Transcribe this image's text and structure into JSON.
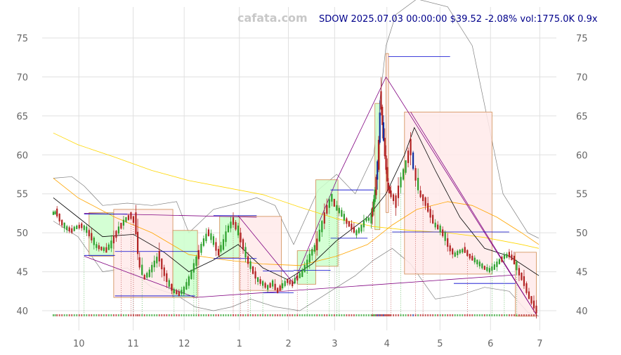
{
  "watermark": "cafata.com",
  "header": {
    "ticker": "SDOW",
    "date": "2025.07.03 00:00:00",
    "price": "$39.52",
    "change": "-2.08%",
    "volume": "vol:1775.0K",
    "ratio": "0.9x"
  },
  "colors": {
    "up": "#2ca02c",
    "down": "#b22222",
    "big_up": "#1030a0",
    "zone_up_fill": "#ccffcc",
    "zone_down_fill": "#ffeaea",
    "zone_border": "#d08a50",
    "ma_fast": "#000000",
    "ma_mid": "#ffa500",
    "ma_slow": "#ffd700",
    "band": "#808080",
    "trend": "#800080",
    "level": "#0000cd"
  },
  "chart_data": {
    "type": "candlestick",
    "title": "SDOW 2025.07.03 00:00:00 $39.52 -2.08% vol:1775.0K 0.9x",
    "x_ticks": [
      "10",
      "11",
      "12",
      "1",
      "2",
      "3",
      "4",
      "5",
      "6",
      "7"
    ],
    "x_tick_pos": [
      0.7,
      44.8,
      86.2,
      131.0,
      170.8,
      208.3,
      250.7,
      293.8,
      334.8,
      374.8
    ],
    "x_range": [
      -20,
      380
    ],
    "y_ticks": [
      40,
      45,
      50,
      55,
      60,
      65,
      70,
      75
    ],
    "ylim": [
      38.2,
      79
    ],
    "grid": true,
    "close_path": [
      [
        -20,
        52.5
      ],
      [
        -17,
        52.6
      ],
      [
        -13,
        51.3
      ],
      [
        -9,
        50.6
      ],
      [
        -5,
        50.3
      ],
      [
        -1,
        50.7
      ],
      [
        3,
        50.9
      ],
      [
        7,
        50.4
      ],
      [
        11,
        49.5
      ],
      [
        15,
        48.3
      ],
      [
        19,
        48.0
      ],
      [
        23,
        47.8
      ],
      [
        27,
        48.5
      ],
      [
        31,
        49.8
      ],
      [
        35,
        50.9
      ],
      [
        39,
        51.7
      ],
      [
        43,
        52.2
      ],
      [
        47,
        51.2
      ],
      [
        50,
        46.2
      ],
      [
        54,
        44.3
      ],
      [
        58,
        44.8
      ],
      [
        62,
        46.0
      ],
      [
        66,
        47.0
      ],
      [
        70,
        45.0
      ],
      [
        74,
        43.5
      ],
      [
        78,
        42.5
      ],
      [
        82,
        42.2
      ],
      [
        86,
        42.6
      ],
      [
        90,
        43.8
      ],
      [
        94,
        45.5
      ],
      [
        98,
        47.2
      ],
      [
        102,
        48.8
      ],
      [
        106,
        50.0
      ],
      [
        110,
        49.0
      ],
      [
        114,
        47.5
      ],
      [
        118,
        48.5
      ],
      [
        122,
        50.5
      ],
      [
        126,
        51.5
      ],
      [
        130,
        50.3
      ],
      [
        134,
        48.5
      ],
      [
        138,
        46.5
      ],
      [
        142,
        45.2
      ],
      [
        146,
        44.0
      ],
      [
        150,
        43.5
      ],
      [
        154,
        43.0
      ],
      [
        158,
        43.5
      ],
      [
        162,
        42.6
      ],
      [
        166,
        43.2
      ],
      [
        170,
        43.8
      ],
      [
        174,
        43.5
      ],
      [
        178,
        44.2
      ],
      [
        182,
        44.8
      ],
      [
        186,
        46.0
      ],
      [
        190,
        47.5
      ],
      [
        194,
        48.5
      ],
      [
        198,
        50.8
      ],
      [
        202,
        53.0
      ],
      [
        206,
        54.5
      ],
      [
        210,
        53.2
      ],
      [
        214,
        52.5
      ],
      [
        218,
        51.5
      ],
      [
        222,
        50.8
      ],
      [
        226,
        50.0
      ],
      [
        230,
        50.6
      ],
      [
        234,
        51.7
      ],
      [
        238,
        51.8
      ],
      [
        240,
        53.5
      ],
      [
        242,
        56.0
      ],
      [
        244,
        60.0
      ],
      [
        246,
        67.0
      ],
      [
        248,
        63.0
      ],
      [
        250,
        59.0
      ],
      [
        252,
        56.0
      ],
      [
        254,
        55.0
      ],
      [
        258,
        54.0
      ],
      [
        262,
        56.5
      ],
      [
        266,
        58.5
      ],
      [
        270,
        61.0
      ],
      [
        274,
        57.5
      ],
      [
        278,
        55.0
      ],
      [
        282,
        54.0
      ],
      [
        286,
        52.5
      ],
      [
        290,
        51.0
      ],
      [
        294,
        50.5
      ],
      [
        298,
        49.5
      ],
      [
        302,
        48.0
      ],
      [
        306,
        47.2
      ],
      [
        310,
        47.6
      ],
      [
        314,
        47.8
      ],
      [
        318,
        47.0
      ],
      [
        322,
        46.5
      ],
      [
        326,
        46.0
      ],
      [
        330,
        45.5
      ],
      [
        334,
        45.2
      ],
      [
        338,
        45.6
      ],
      [
        342,
        46.3
      ],
      [
        346,
        46.9
      ],
      [
        350,
        47.2
      ],
      [
        354,
        46.5
      ],
      [
        358,
        45.0
      ],
      [
        362,
        43.8
      ],
      [
        366,
        42.0
      ],
      [
        370,
        40.8
      ],
      [
        374,
        39.5
      ]
    ],
    "zones": [
      {
        "x0": 9,
        "x1": 29,
        "y0": 47.0,
        "y1": 52.6,
        "kind": "up"
      },
      {
        "x0": 29,
        "x1": 77,
        "y0": 41.7,
        "y1": 53.0,
        "kind": "down"
      },
      {
        "x0": 77,
        "x1": 97,
        "y0": 41.7,
        "y1": 50.3,
        "kind": "up"
      },
      {
        "x0": 115,
        "x1": 131,
        "y0": 46.8,
        "y1": 52.1,
        "kind": "up"
      },
      {
        "x0": 131,
        "x1": 165,
        "y0": 42.6,
        "y1": 52.1,
        "kind": "down"
      },
      {
        "x0": 178,
        "x1": 193,
        "y0": 43.4,
        "y1": 47.7,
        "kind": "up"
      },
      {
        "x0": 193,
        "x1": 211,
        "y0": 45.7,
        "y1": 56.8,
        "kind": "up"
      },
      {
        "x0": 241,
        "x1": 245,
        "y0": 50.4,
        "y1": 66.6,
        "kind": "up"
      },
      {
        "x0": 250,
        "x1": 252,
        "y0": 52.6,
        "y1": 73.0,
        "kind": "down"
      },
      {
        "x0": 265,
        "x1": 336,
        "y0": 44.7,
        "y1": 65.5,
        "kind": "down"
      },
      {
        "x0": 355,
        "x1": 372,
        "y0": 39.3,
        "y1": 47.5,
        "kind": "down"
      }
    ],
    "level_lines": [
      {
        "x0": 5,
        "x1": 40,
        "y": 52.4
      },
      {
        "x0": 5,
        "x1": 30,
        "y": 47.1
      },
      {
        "x0": 30,
        "x1": 98,
        "y": 47.6
      },
      {
        "x0": 30,
        "x1": 95,
        "y": 41.9
      },
      {
        "x0": 110,
        "x1": 145,
        "y": 52.2
      },
      {
        "x0": 110,
        "x1": 145,
        "y": 46.7
      },
      {
        "x0": 150,
        "x1": 175,
        "y": 45.1
      },
      {
        "x0": 150,
        "x1": 175,
        "y": 42.3
      },
      {
        "x0": 175,
        "x1": 205,
        "y": 45.2
      },
      {
        "x0": 205,
        "x1": 240,
        "y": 55.5
      },
      {
        "x0": 205,
        "x1": 235,
        "y": 49.3
      },
      {
        "x0": 252,
        "x1": 302,
        "y": 72.6
      },
      {
        "x0": 255,
        "x1": 350,
        "y": 50.1
      },
      {
        "x0": 305,
        "x1": 355,
        "y": 43.5
      }
    ],
    "trend_lines": [
      [
        [
          5,
          47.0
        ],
        [
          95,
          41.7
        ]
      ],
      [
        [
          5,
          52.5
        ],
        [
          145,
          52.0
        ]
      ],
      [
        [
          95,
          41.7
        ],
        [
          355,
          44.6
        ]
      ],
      [
        [
          130,
          52.2
        ],
        [
          175,
          43.5
        ]
      ],
      [
        [
          175,
          43.5
        ],
        [
          210,
          56.8
        ]
      ],
      [
        [
          210,
          56.8
        ],
        [
          250,
          70.0
        ]
      ],
      [
        [
          250,
          70.0
        ],
        [
          372,
          39.5
        ]
      ],
      [
        [
          270,
          65.5
        ],
        [
          372,
          39.5
        ]
      ]
    ],
    "ma_fast": [
      [
        -20,
        54.5
      ],
      [
        0,
        52.0
      ],
      [
        20,
        49.5
      ],
      [
        45,
        49.8
      ],
      [
        70,
        47.5
      ],
      [
        90,
        45.0
      ],
      [
        110,
        46.5
      ],
      [
        130,
        48.5
      ],
      [
        150,
        45.5
      ],
      [
        170,
        44.0
      ],
      [
        190,
        46.0
      ],
      [
        210,
        49.0
      ],
      [
        235,
        52.0
      ],
      [
        250,
        55.0
      ],
      [
        265,
        60.0
      ],
      [
        273,
        63.5
      ],
      [
        290,
        58.0
      ],
      [
        310,
        52.0
      ],
      [
        330,
        48.0
      ],
      [
        350,
        47.0
      ],
      [
        374,
        44.5
      ]
    ],
    "ma_mid": [
      [
        -20,
        57.0
      ],
      [
        0,
        54.5
      ],
      [
        30,
        52.0
      ],
      [
        60,
        50.0
      ],
      [
        90,
        47.2
      ],
      [
        120,
        46.5
      ],
      [
        150,
        46.0
      ],
      [
        180,
        45.8
      ],
      [
        210,
        47.0
      ],
      [
        235,
        48.5
      ],
      [
        255,
        51.0
      ],
      [
        275,
        53.0
      ],
      [
        300,
        54.0
      ],
      [
        320,
        53.5
      ],
      [
        340,
        52.0
      ],
      [
        360,
        50.0
      ],
      [
        374,
        48.5
      ]
    ],
    "ma_slow": [
      [
        -20,
        62.8
      ],
      [
        0,
        61.3
      ],
      [
        30,
        59.7
      ],
      [
        60,
        58.0
      ],
      [
        90,
        56.7
      ],
      [
        120,
        55.8
      ],
      [
        150,
        54.9
      ],
      [
        180,
        53.3
      ],
      [
        210,
        51.8
      ],
      [
        240,
        50.8
      ],
      [
        270,
        50.3
      ],
      [
        300,
        50.0
      ],
      [
        330,
        49.4
      ],
      [
        360,
        48.5
      ],
      [
        374,
        48.0
      ]
    ],
    "band_upper": [
      [
        -20,
        57.0
      ],
      [
        -5,
        57.2
      ],
      [
        5,
        56.0
      ],
      [
        20,
        53.5
      ],
      [
        40,
        53.8
      ],
      [
        60,
        53.5
      ],
      [
        80,
        54.0
      ],
      [
        90,
        50.0
      ],
      [
        110,
        53.0
      ],
      [
        130,
        53.8
      ],
      [
        145,
        54.5
      ],
      [
        160,
        53.5
      ],
      [
        175,
        48.5
      ],
      [
        195,
        55.5
      ],
      [
        210,
        57.5
      ],
      [
        225,
        55.0
      ],
      [
        240,
        60.0
      ],
      [
        250,
        74.0
      ],
      [
        258,
        78.0
      ],
      [
        275,
        80.0
      ],
      [
        300,
        79.0
      ],
      [
        320,
        74.0
      ],
      [
        345,
        55.0
      ],
      [
        365,
        50.0
      ],
      [
        374,
        49.3
      ]
    ],
    "band_lower": [
      [
        -20,
        51.5
      ],
      [
        0,
        49.5
      ],
      [
        20,
        45.0
      ],
      [
        40,
        45.5
      ],
      [
        60,
        43.0
      ],
      [
        80,
        42.0
      ],
      [
        95,
        40.5
      ],
      [
        110,
        40.0
      ],
      [
        125,
        40.5
      ],
      [
        140,
        41.5
      ],
      [
        160,
        40.5
      ],
      [
        180,
        40.0
      ],
      [
        195,
        41.5
      ],
      [
        210,
        43.0
      ],
      [
        225,
        44.5
      ],
      [
        240,
        46.5
      ],
      [
        255,
        48.0
      ],
      [
        270,
        46.0
      ],
      [
        290,
        41.5
      ],
      [
        310,
        42.0
      ],
      [
        330,
        43.0
      ],
      [
        350,
        42.5
      ],
      [
        365,
        39.8
      ],
      [
        374,
        39.3
      ]
    ]
  }
}
